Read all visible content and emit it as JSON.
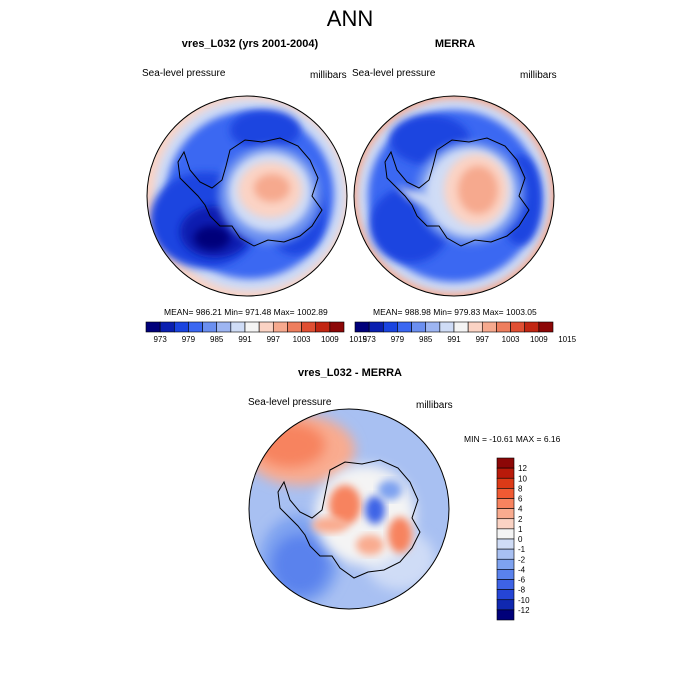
{
  "figure": {
    "title": "ANN",
    "bottom_title": "vres_L032 - MERRA"
  },
  "panels": [
    {
      "title": "vres_L032 (yrs 2001-2004)",
      "left_label": "Sea-level pressure",
      "right_label": "millibars",
      "stats": "MEAN= 986.21  Min= 971.48  Max= 1002.89"
    },
    {
      "title": "MERRA",
      "left_label": "Sea-level pressure",
      "right_label": "millibars",
      "stats": "MEAN= 988.98  Min= 979.83  Max= 1003.05"
    },
    {
      "title": "",
      "left_label": "Sea-level pressure",
      "right_label": "millibars",
      "stats": "MIN = -10.61  MAX =   6.16"
    }
  ],
  "colorbar_horizontal": {
    "colors": [
      "#00007a",
      "#0a1fb0",
      "#1a44e0",
      "#3a67f2",
      "#6b8ff0",
      "#9db5f2",
      "#cfdcf6",
      "#f4f4f4",
      "#fbd3c4",
      "#f6a98e",
      "#ee7e5e",
      "#e04f33",
      "#c22612",
      "#8c0707"
    ],
    "labels": [
      "973",
      "979",
      "985",
      "991",
      "997",
      "1003",
      "1009",
      "1015"
    ]
  },
  "colorbar_vertical": {
    "colors": [
      "#8c0707",
      "#b81a0a",
      "#dc3a17",
      "#ef5a33",
      "#f7835f",
      "#f9ab8f",
      "#fbd3c4",
      "#f4f4f4",
      "#cfdcf6",
      "#a8c0f2",
      "#7ea2f0",
      "#5a82ed",
      "#3e63e6",
      "#2545d6",
      "#1028b0",
      "#00007a"
    ],
    "labels": [
      "12",
      "10",
      "8",
      "6",
      "4",
      "2",
      "1",
      "0",
      "-1",
      "-2",
      "-4",
      "-6",
      "-8",
      "-10",
      "-12"
    ]
  }
}
